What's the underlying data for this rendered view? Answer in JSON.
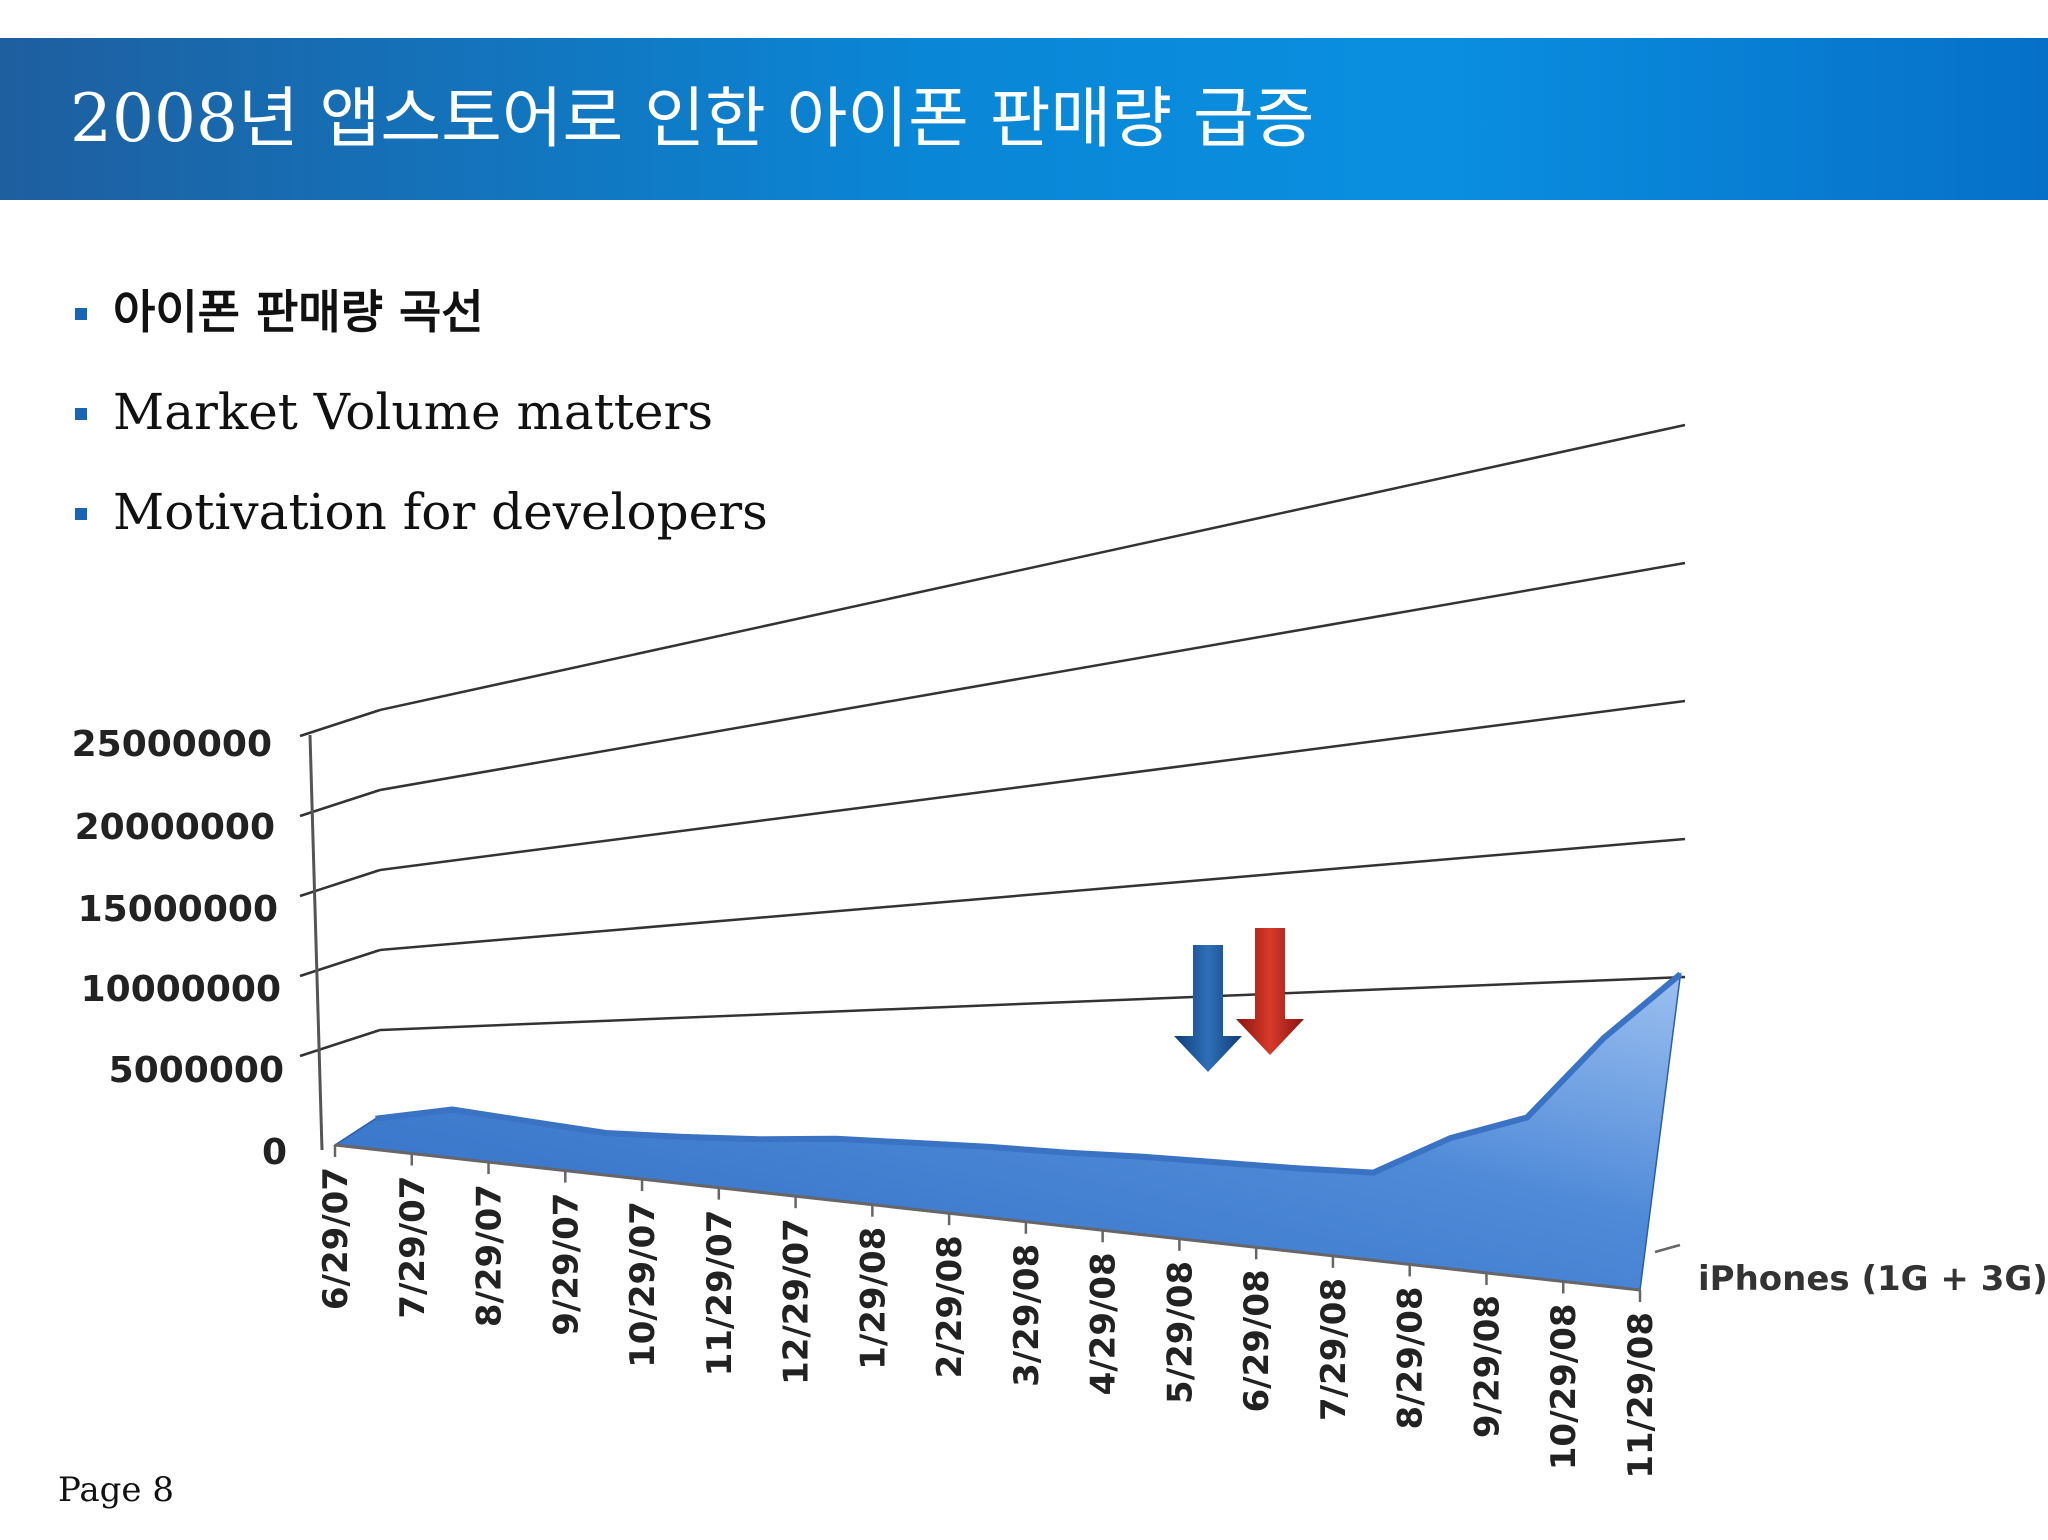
{
  "slide": {
    "title": "2008년 앱스토어로 인한 아이폰 판매량 급증",
    "bullets": [
      "아이폰 판매량 곡선",
      "Market Volume matters",
      "Motivation for developers"
    ],
    "page": "Page 8"
  },
  "colors": {
    "title_bar": "#0a86d6",
    "bullet": "#1b63b5",
    "area": "#4a86d8",
    "arrow_blue": "#1a4f8c",
    "arrow_red": "#b0201a"
  },
  "chart_data": {
    "type": "area",
    "title": "",
    "xlabel": "",
    "ylabel": "",
    "ylim": [
      0,
      25000000
    ],
    "yticks": [
      "25000000",
      "20000000",
      "15000000",
      "10000000",
      "5000000",
      "0"
    ],
    "categories": [
      "6/29/07",
      "7/29/07",
      "8/29/07",
      "9/29/07",
      "10/29/07",
      "11/29/07",
      "12/29/07",
      "1/29/08",
      "2/29/08",
      "3/29/08",
      "4/29/08",
      "5/29/08",
      "6/29/08",
      "7/29/08",
      "8/29/08",
      "9/29/08",
      "10/29/08",
      "11/29/08"
    ],
    "series": [
      {
        "name": "iPhones (1G + 3G)",
        "values": [
          270000,
          1400000,
          1200000,
          1000000,
          1300000,
          1700000,
          2300000,
          2600000,
          2900000,
          3100000,
          3400000,
          3600000,
          3800000,
          4100000,
          7000000,
          9000000,
          15000000,
          20000000
        ]
      }
    ],
    "grid": true,
    "legend": "right",
    "annotations": [
      {
        "type": "arrow",
        "color": "blue",
        "category": "6/29/08"
      },
      {
        "type": "arrow",
        "color": "red",
        "category": "7/29/08"
      }
    ]
  }
}
